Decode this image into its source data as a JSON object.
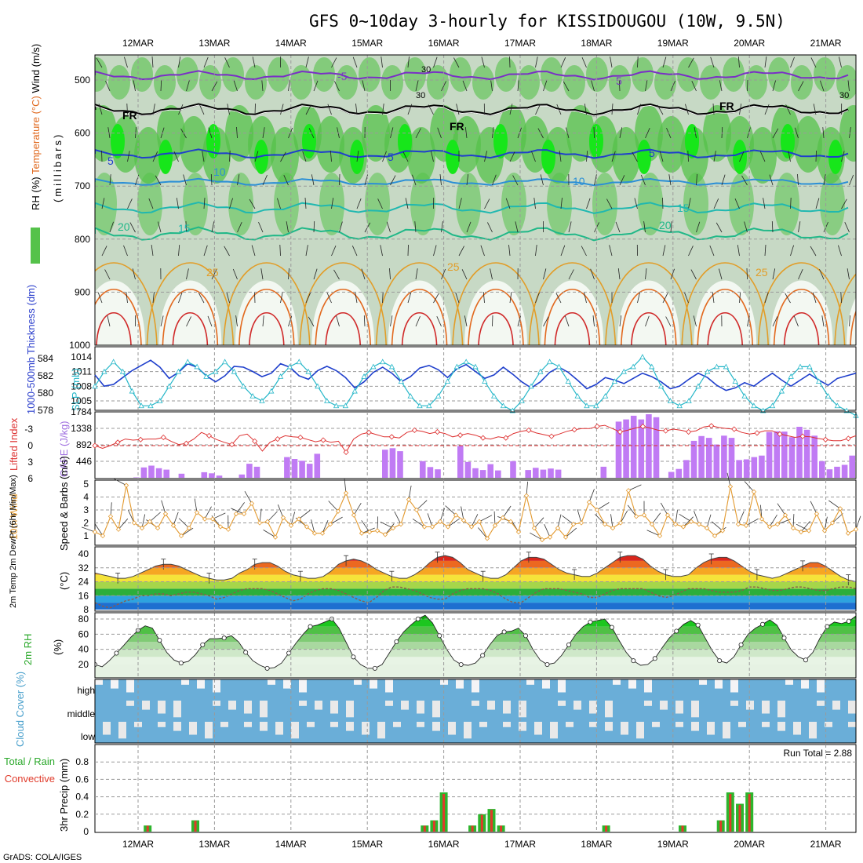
{
  "title": "GFS 0~10day 3-hourly for KISSIDOUGOU (10W, 9.5N)",
  "credit": "GrADS: COLA/IGES",
  "colors": {
    "rh_light": "#e8f4e6",
    "rh_mid": "#a9d4a0",
    "rh_green": "#55c24a",
    "rh_bright": "#17e61a",
    "cape_bar": "#c07bf4",
    "li_line": "#dd3030",
    "slp": "#24b6c8",
    "thk": "#1f3fcc",
    "wind": "#e39a30",
    "t2m": "#555555",
    "dew": "#8c5a4a",
    "precip_total": "#2db52d",
    "precip_conv": "#e03a2a",
    "cloud": "#6aaed8",
    "cloud_gap": "#e9e9e9"
  },
  "chart_data": {
    "type": "meteogram",
    "x_labels": [
      "12MAR",
      "13MAR",
      "14MAR",
      "15MAR",
      "16MAR",
      "17MAR",
      "18MAR",
      "19MAR",
      "20MAR",
      "21MAR"
    ],
    "panels": [
      {
        "id": "upper_air",
        "ylabel_parts": [
          "RH (%)",
          "Temperature (°C)",
          "Wind (m/s)"
        ],
        "yunit": "(millibars)",
        "yticks": [
          500,
          600,
          700,
          800,
          900,
          1000
        ],
        "temperature_contour_labels": [
          "-5",
          "5",
          "10",
          "15",
          "20",
          "25",
          "FR"
        ],
        "other_labels": [
          "30",
          "30",
          "30"
        ]
      },
      {
        "id": "slp_thickness",
        "ylabel_left": "1000-500mb Thickness (dm)",
        "ylabel_right": "SLP (mb)",
        "thickness_ticks": [
          584,
          582,
          580,
          578
        ],
        "slp_ticks": [
          1014,
          1011,
          1008,
          1005
        ],
        "slp_mb": [
          1008,
          1011,
          1013,
          1011,
          1007,
          1004,
          1004,
          1005,
          1008,
          1011,
          1013,
          1012,
          1010,
          1011,
          1013,
          1011,
          1008,
          1006,
          1005,
          1007,
          1010,
          1012,
          1013,
          1011,
          1008,
          1005,
          1004,
          1004,
          1007,
          1010,
          1012,
          1013,
          1012,
          1009,
          1006,
          1004,
          1004,
          1006,
          1009,
          1012,
          1013,
          1012,
          1009,
          1006,
          1004,
          1003,
          1005,
          1008,
          1011,
          1013,
          1012,
          1009,
          1006,
          1004,
          1004,
          1006,
          1009,
          1011,
          1012,
          1014,
          1012,
          1008,
          1005,
          1004,
          1005,
          1008,
          1011,
          1012,
          1012,
          1009,
          1006,
          1004,
          1003,
          1004,
          1007,
          1010,
          1012,
          1012,
          1009,
          1006,
          1004,
          1003,
          1002
        ],
        "thickness_dm": [
          582.1,
          580.8,
          581.0,
          581.8,
          582.6,
          583.2,
          583.8,
          583.0,
          581.7,
          582.4,
          583.4,
          583.0,
          582.0,
          581.3,
          582.0,
          583.1,
          583.0,
          582.5,
          581.9,
          582.3,
          583.4,
          583.0,
          582.0,
          581.6,
          582.6,
          583.1,
          582.6,
          581.8,
          580.6,
          581.3,
          582.4,
          583.0,
          582.3,
          581.3,
          581.9,
          582.9,
          583.2,
          582.7,
          581.8,
          582.8,
          583.3,
          582.5,
          581.7,
          582.1,
          583.0,
          582.2,
          581.3,
          580.6,
          581.3,
          582.4,
          583.0,
          582.4,
          581.5,
          580.5,
          581.0,
          581.8,
          581.5,
          581.1,
          581.7,
          582.3,
          581.9,
          581.3,
          580.5,
          580.8,
          581.6,
          582.3,
          581.8,
          580.9,
          580.3,
          580.6,
          581.2,
          580.8,
          581.6,
          582.3,
          581.5,
          580.8,
          581.5,
          582.2,
          581.5,
          580.9,
          581.7,
          582.0,
          582.3
        ]
      },
      {
        "id": "cape_li",
        "ylabel_left": "Lifted Index",
        "ylabel_right": "CAPE (J/kg)",
        "li_ticks": [
          -3,
          0,
          3,
          6
        ],
        "cape_ticks": [
          1784,
          1338,
          892,
          446
        ],
        "cape_jkg": [
          0,
          0,
          0,
          0,
          0,
          10,
          280,
          330,
          260,
          220,
          0,
          110,
          0,
          0,
          150,
          120,
          60,
          0,
          0,
          90,
          380,
          300,
          0,
          0,
          0,
          560,
          510,
          460,
          380,
          650,
          0,
          0,
          0,
          0,
          0,
          0,
          0,
          0,
          760,
          800,
          720,
          0,
          0,
          450,
          290,
          230,
          0,
          0,
          860,
          430,
          260,
          210,
          370,
          200,
          0,
          450,
          0,
          210,
          270,
          220,
          250,
          220,
          0,
          0,
          0,
          0,
          0,
          300,
          0,
          1520,
          1580,
          1680,
          1580,
          1720,
          1640,
          0,
          160,
          240,
          480,
          1000,
          1130,
          1080,
          900,
          1140,
          1080,
          480,
          500,
          560,
          600,
          1240,
          1260,
          1250,
          1100,
          1380,
          1300,
          1140,
          450,
          230,
          300,
          350,
          600
        ],
        "lifted_index": [
          0,
          0.5,
          0,
          -0.6,
          -1.2,
          -1.0,
          -1.1,
          -1.2,
          -1.2,
          -1.5,
          -0.8,
          -0.2,
          -0.4,
          -1.2,
          -2.4,
          -1.8,
          -1.1,
          -0.6,
          -0.2,
          -1.8,
          -2.1,
          -0.8,
          1.0,
          -0.6,
          -1.2,
          -1.8,
          -1.6,
          -1.5,
          -1.1,
          -0.7,
          -1.0,
          -0.6,
          -0.8,
          1.2,
          -1.2,
          -2.1,
          -2.4,
          -2.0,
          -1.6,
          -1.6,
          -1.4,
          -2.4,
          -2.8,
          -2.6,
          -2.2,
          -2.5,
          -2.2,
          -1.6,
          -1.9,
          -2.2,
          -1.9,
          -1.4,
          -1.2,
          -1.6,
          -1.4,
          -2.2,
          -2.6,
          -2.8,
          -2.3,
          -2.0,
          -1.7,
          -2.1,
          -2.6,
          -2.9,
          -3.1,
          -3.1,
          -3.5,
          -3.7,
          -3.1,
          -2.5,
          -2.8,
          -3.2,
          -3.5,
          -3.2,
          -2.8,
          -2.7,
          -3.0,
          -2.8,
          -2.5,
          -2.7,
          -3.4,
          -3.6,
          -3.3,
          -3.1,
          -3.0,
          -2.4,
          -2.1,
          -2.3,
          -2.7,
          -2.7,
          -2.1,
          -1.8,
          -1.5,
          -1.7,
          -1.6,
          -1.3,
          -1.1,
          -0.9,
          -0.9,
          -1.3,
          -1.8
        ]
      },
      {
        "id": "wind10m",
        "ylabel_left": "10m Wind",
        "ylabel_right": "Speed & Barbs (m/s)",
        "yticks": [
          1,
          2,
          3,
          4,
          5
        ],
        "speed_ms": [
          1.3,
          1.0,
          2.5,
          1.5,
          4.9,
          2.0,
          1.6,
          2.1,
          1.6,
          2.7,
          1.8,
          1.0,
          1.6,
          2.8,
          2.3,
          2.3,
          1.7,
          1.5,
          2.7,
          2.7,
          3.5,
          2.0,
          2.1,
          0.9,
          2.4,
          1.8,
          2.3,
          1.7,
          1.2,
          1.2,
          1.9,
          2.9,
          4.3,
          2.6,
          1.2,
          1.3,
          1.4,
          1.1,
          1.6,
          1.9,
          3.8,
          3.0,
          1.7,
          1.7,
          2.1,
          1.7,
          2.6,
          2.2,
          1.7,
          2.1,
          0.8,
          1.8,
          2.4,
          2.1,
          1.3,
          4.1,
          1.6,
          0.7,
          0.9,
          1.6,
          0.9,
          1.9,
          2.0,
          3.6,
          3.0,
          1.9,
          1.6,
          2.0,
          4.5,
          2.5,
          2.6,
          1.9,
          1.0,
          2.6,
          1.9,
          1.7,
          2.1,
          1.9,
          1.6,
          1.0,
          1.4,
          4.8,
          1.9,
          1.8,
          4.4,
          2.3,
          1.7,
          1.9,
          2.6,
          1.6,
          1.3,
          1.4,
          2.7,
          1.4,
          2.0,
          3.1,
          1.2,
          1.5
        ]
      },
      {
        "id": "t2m",
        "ylabel_left": "2m Temp 2m DewPt (6hr Min/Max)",
        "yunit": "(°C)",
        "yticks": [
          8,
          16,
          24,
          32,
          40
        ],
        "temp_c": [
          29,
          28,
          27,
          26,
          26,
          27,
          29,
          31,
          33,
          34,
          34,
          33,
          31,
          29,
          27,
          26,
          25,
          25,
          26,
          29,
          31,
          34,
          35,
          35,
          33,
          30,
          28,
          27,
          26,
          26,
          27,
          30,
          34,
          36,
          37,
          36,
          34,
          31,
          29,
          27,
          26,
          26,
          28,
          31,
          35,
          38,
          39,
          38,
          35,
          31,
          29,
          27,
          26,
          26,
          28,
          32,
          36,
          38,
          38,
          37,
          34,
          31,
          29,
          28,
          27,
          27,
          29,
          32,
          35,
          38,
          39,
          39,
          37,
          33,
          30,
          28,
          27,
          27,
          28,
          32,
          35,
          37,
          38,
          38,
          36,
          33,
          30,
          28,
          27,
          26,
          27,
          29,
          31,
          33,
          35,
          35,
          33,
          30,
          27,
          25,
          24
        ],
        "dew_c": [
          12,
          10,
          9,
          11,
          13,
          14,
          16,
          16,
          17,
          17,
          16,
          17,
          18,
          18,
          17,
          16,
          14,
          15,
          17,
          19,
          20,
          20,
          20,
          19,
          17,
          15,
          13,
          14,
          17,
          19,
          20,
          20,
          19,
          17,
          15,
          13,
          12,
          15,
          19,
          21,
          21,
          20,
          19,
          17,
          15,
          14,
          14,
          17,
          19,
          20,
          20,
          20,
          19,
          17,
          14,
          12,
          12,
          15,
          18,
          20,
          20,
          20,
          19,
          18,
          17,
          15,
          15,
          17,
          19,
          20,
          20,
          20,
          20,
          18,
          16,
          15,
          16,
          18,
          20,
          20,
          20,
          19,
          18,
          18,
          18,
          19,
          21,
          21,
          20,
          19,
          19,
          20,
          21,
          21,
          20,
          19,
          19,
          20,
          21,
          21,
          20
        ]
      },
      {
        "id": "rh2m",
        "ylabel_left": "2m RH",
        "yunit": "(%)",
        "yticks": [
          20,
          40,
          60,
          80
        ],
        "rh_pct": [
          20,
          17,
          25,
          35,
          45,
          56,
          65,
          71,
          68,
          52,
          36,
          26,
          22,
          24,
          33,
          46,
          54,
          54,
          55,
          58,
          50,
          36,
          25,
          19,
          15,
          16,
          22,
          35,
          48,
          60,
          70,
          72,
          76,
          80,
          68,
          49,
          30,
          20,
          15,
          15,
          20,
          35,
          50,
          63,
          72,
          80,
          85,
          75,
          58,
          40,
          26,
          20,
          19,
          22,
          32,
          46,
          58,
          63,
          64,
          68,
          58,
          40,
          26,
          20,
          22,
          32,
          46,
          60,
          70,
          76,
          78,
          80,
          69,
          52,
          36,
          25,
          19,
          20,
          28,
          42,
          55,
          64,
          73,
          78,
          72,
          55,
          38,
          25,
          22,
          30,
          46,
          60,
          68,
          73,
          79,
          72,
          55,
          39,
          30,
          26,
          36,
          55,
          70,
          76,
          74,
          77,
          84
        ],
        "run_total_label": "Run Total = 2.88"
      },
      {
        "id": "cloud",
        "ylabel_left": "Cloud Cover (%)",
        "ylevels": [
          "high",
          "middle",
          "low"
        ]
      },
      {
        "id": "precip",
        "ylabel_left": "3hr Precip (mm)",
        "legend_left": [
          "Total / Rain",
          "Convective"
        ],
        "run_total": "Run Total = 2.88",
        "yticks": [
          0,
          0.2,
          0.4,
          0.6,
          0.8
        ],
        "ylim": [
          0,
          1.0
        ],
        "bars_mm": [
          {
            "day": "12MAR",
            "offset_h": 3,
            "value": 0.07
          },
          {
            "day": "13MAR",
            "offset_h": -6,
            "value": 0.13
          },
          {
            "day": "16MAR",
            "offset_h": -6,
            "value": 0.07
          },
          {
            "day": "16MAR",
            "offset_h": -3,
            "value": 0.13
          },
          {
            "day": "16MAR",
            "offset_h": 0,
            "value": 0.45
          },
          {
            "day": "17MAR",
            "offset_h": -15,
            "value": 0.07
          },
          {
            "day": "17MAR",
            "offset_h": -12,
            "value": 0.2
          },
          {
            "day": "17MAR",
            "offset_h": -9,
            "value": 0.26
          },
          {
            "day": "17MAR",
            "offset_h": -6,
            "value": 0.07
          },
          {
            "day": "19MAR",
            "offset_h": -21,
            "value": 0.07
          },
          {
            "day": "20MAR",
            "offset_h": -21,
            "value": 0.07
          },
          {
            "day": "20MAR",
            "offset_h": 0,
            "value": 0.45
          },
          {
            "day": "21MAR",
            "offset_h": -33,
            "value": 0.13
          },
          {
            "day": "21MAR",
            "offset_h": -30,
            "value": 0.45
          },
          {
            "day": "21MAR",
            "offset_h": -27,
            "value": 0.32
          }
        ]
      }
    ]
  }
}
